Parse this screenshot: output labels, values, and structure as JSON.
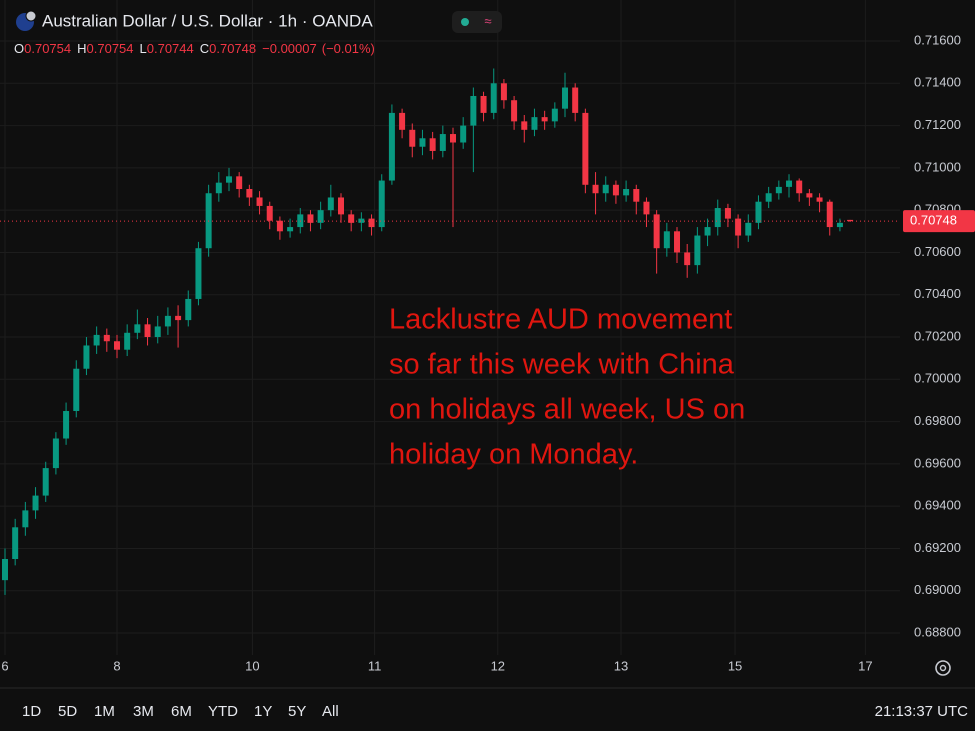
{
  "chart_data": {
    "type": "candlestick",
    "title": "Australian Dollar / U.S. Dollar · 1h · OANDA",
    "ohlc_header": [
      {
        "key": "O",
        "value": 0.70754
      },
      {
        "key": "H",
        "value": 0.70754
      },
      {
        "key": "L",
        "value": 0.70744
      },
      {
        "key": "C",
        "value": 0.70748
      }
    ],
    "change": {
      "value": -7e-05,
      "label": "−0.00007"
    },
    "change_pct": {
      "value": -0.01,
      "label": "(−0.01%)"
    },
    "last_price": 0.70748,
    "annotation": [
      "Lacklustre AUD movement",
      "so far this week with China",
      "on holidays all week, US on",
      "holiday on Monday."
    ],
    "up_color": "#089981",
    "down_color": "#f23645",
    "grid": true,
    "open": [
      0.6905,
      0.6915,
      0.693,
      0.6938,
      0.6945,
      0.6958,
      0.6972,
      0.6985,
      0.7005,
      0.7016,
      0.7021,
      0.7018,
      0.7014,
      0.7022,
      0.7026,
      0.702,
      0.7025,
      0.703,
      0.7028,
      0.7038,
      0.7062,
      0.7088,
      0.7093,
      0.7096,
      0.709,
      0.7086,
      0.7082,
      0.7075,
      0.707,
      0.7072,
      0.7078,
      0.7074,
      0.708,
      0.7086,
      0.7078,
      0.7074,
      0.7076,
      0.7072,
      0.7094,
      0.7126,
      0.7118,
      0.711,
      0.7114,
      0.7108,
      0.7116,
      0.7112,
      0.712,
      0.7134,
      0.7126,
      0.714,
      0.7132,
      0.7122,
      0.7118,
      0.7124,
      0.7122,
      0.7128,
      0.7138,
      0.7126,
      0.7092,
      0.7088,
      0.7092,
      0.7087,
      0.709,
      0.7084,
      0.7078,
      0.7062,
      0.707,
      0.706,
      0.7054,
      0.7068,
      0.7072,
      0.7081,
      0.7076,
      0.7068,
      0.7074,
      0.7084,
      0.7088,
      0.7091,
      0.7094,
      0.7088,
      0.7086,
      0.7084,
      0.7072,
      0.70754
    ],
    "high": [
      0.692,
      0.6934,
      0.6942,
      0.6949,
      0.6961,
      0.6975,
      0.6989,
      0.7009,
      0.702,
      0.7025,
      0.7024,
      0.7021,
      0.7026,
      0.7033,
      0.7029,
      0.703,
      0.7034,
      0.7035,
      0.7042,
      0.7065,
      0.7092,
      0.7098,
      0.71,
      0.7098,
      0.7092,
      0.7089,
      0.7084,
      0.7077,
      0.7076,
      0.7081,
      0.708,
      0.7084,
      0.7092,
      0.7088,
      0.708,
      0.7079,
      0.7078,
      0.7097,
      0.713,
      0.7128,
      0.7121,
      0.7118,
      0.7117,
      0.712,
      0.7119,
      0.7124,
      0.7138,
      0.7136,
      0.7147,
      0.7142,
      0.7134,
      0.7125,
      0.7128,
      0.7127,
      0.7131,
      0.7145,
      0.714,
      0.7128,
      0.7098,
      0.7096,
      0.7094,
      0.7094,
      0.7092,
      0.7086,
      0.708,
      0.7074,
      0.7072,
      0.7064,
      0.7072,
      0.7076,
      0.7085,
      0.7083,
      0.7078,
      0.7078,
      0.7087,
      0.7091,
      0.7094,
      0.7097,
      0.7095,
      0.709,
      0.7088,
      0.7085,
      0.7076,
      0.70754
    ],
    "low": [
      0.6898,
      0.6912,
      0.6926,
      0.6934,
      0.6942,
      0.6955,
      0.6969,
      0.6982,
      0.7002,
      0.7012,
      0.7013,
      0.701,
      0.7011,
      0.7019,
      0.7016,
      0.7017,
      0.7021,
      0.7015,
      0.7025,
      0.7035,
      0.7058,
      0.7084,
      0.7089,
      0.7086,
      0.7082,
      0.7078,
      0.7071,
      0.7066,
      0.7067,
      0.7069,
      0.707,
      0.7071,
      0.7077,
      0.7074,
      0.707,
      0.707,
      0.7068,
      0.707,
      0.7092,
      0.7114,
      0.7105,
      0.7106,
      0.7104,
      0.7105,
      0.7072,
      0.7109,
      0.7098,
      0.7122,
      0.7123,
      0.7128,
      0.7118,
      0.7112,
      0.7115,
      0.7118,
      0.7119,
      0.7124,
      0.7122,
      0.7088,
      0.7078,
      0.7084,
      0.7083,
      0.7084,
      0.7078,
      0.7072,
      0.705,
      0.7058,
      0.7055,
      0.7048,
      0.705,
      0.7063,
      0.7068,
      0.7072,
      0.7062,
      0.7065,
      0.7071,
      0.7081,
      0.7085,
      0.7086,
      0.7084,
      0.7082,
      0.7079,
      0.7068,
      0.707,
      0.70744
    ],
    "close": [
      0.6915,
      0.693,
      0.6938,
      0.6945,
      0.6958,
      0.6972,
      0.6985,
      0.7005,
      0.7016,
      0.7021,
      0.7018,
      0.7014,
      0.7022,
      0.7026,
      0.702,
      0.7025,
      0.703,
      0.7028,
      0.7038,
      0.7062,
      0.7088,
      0.7093,
      0.7096,
      0.709,
      0.7086,
      0.7082,
      0.7075,
      0.707,
      0.7072,
      0.7078,
      0.7074,
      0.708,
      0.7086,
      0.7078,
      0.7074,
      0.7076,
      0.7072,
      0.7094,
      0.7126,
      0.7118,
      0.711,
      0.7114,
      0.7108,
      0.7116,
      0.7112,
      0.712,
      0.7134,
      0.7126,
      0.714,
      0.7132,
      0.7122,
      0.7118,
      0.7124,
      0.7122,
      0.7128,
      0.7138,
      0.7126,
      0.7092,
      0.7088,
      0.7092,
      0.7087,
      0.709,
      0.7084,
      0.7078,
      0.7062,
      0.707,
      0.706,
      0.7054,
      0.7068,
      0.7072,
      0.7081,
      0.7076,
      0.7068,
      0.7074,
      0.7084,
      0.7088,
      0.7091,
      0.7094,
      0.7088,
      0.7086,
      0.7084,
      0.7072,
      0.7074,
      0.70748
    ],
    "xlim": [
      -0.49,
      87.9
    ],
    "xticks": [
      {
        "value": 0,
        "label": "6"
      },
      {
        "value": 11,
        "label": "8"
      },
      {
        "value": 24.3,
        "label": "10"
      },
      {
        "value": 36.3,
        "label": "11"
      },
      {
        "value": 48.4,
        "label": "12"
      },
      {
        "value": 60.5,
        "label": "13"
      },
      {
        "value": 71.7,
        "label": "15"
      },
      {
        "value": 84.5,
        "label": "17"
      }
    ],
    "ylim": [
      0.68696,
      0.71794
    ],
    "yticks": [
      {
        "value": 0.716,
        "label": "0.71600"
      },
      {
        "value": 0.714,
        "label": "0.71400"
      },
      {
        "value": 0.712,
        "label": "0.71200"
      },
      {
        "value": 0.71,
        "label": "0.71000"
      },
      {
        "value": 0.708,
        "label": "0.70800"
      },
      {
        "value": 0.706,
        "label": "0.70600"
      },
      {
        "value": 0.704,
        "label": "0.70400"
      },
      {
        "value": 0.702,
        "label": "0.70200"
      },
      {
        "value": 0.7,
        "label": "0.70000"
      },
      {
        "value": 0.698,
        "label": "0.69800"
      },
      {
        "value": 0.696,
        "label": "0.69600"
      },
      {
        "value": 0.694,
        "label": "0.69400"
      },
      {
        "value": 0.692,
        "label": "0.69200"
      },
      {
        "value": 0.69,
        "label": "0.69000"
      },
      {
        "value": 0.688,
        "label": "0.68800"
      }
    ]
  },
  "toolbar": {
    "ranges": [
      "1D",
      "5D",
      "1M",
      "3M",
      "6M",
      "YTD",
      "1Y",
      "5Y",
      "All"
    ],
    "clock": "21:13:37 UTC"
  }
}
